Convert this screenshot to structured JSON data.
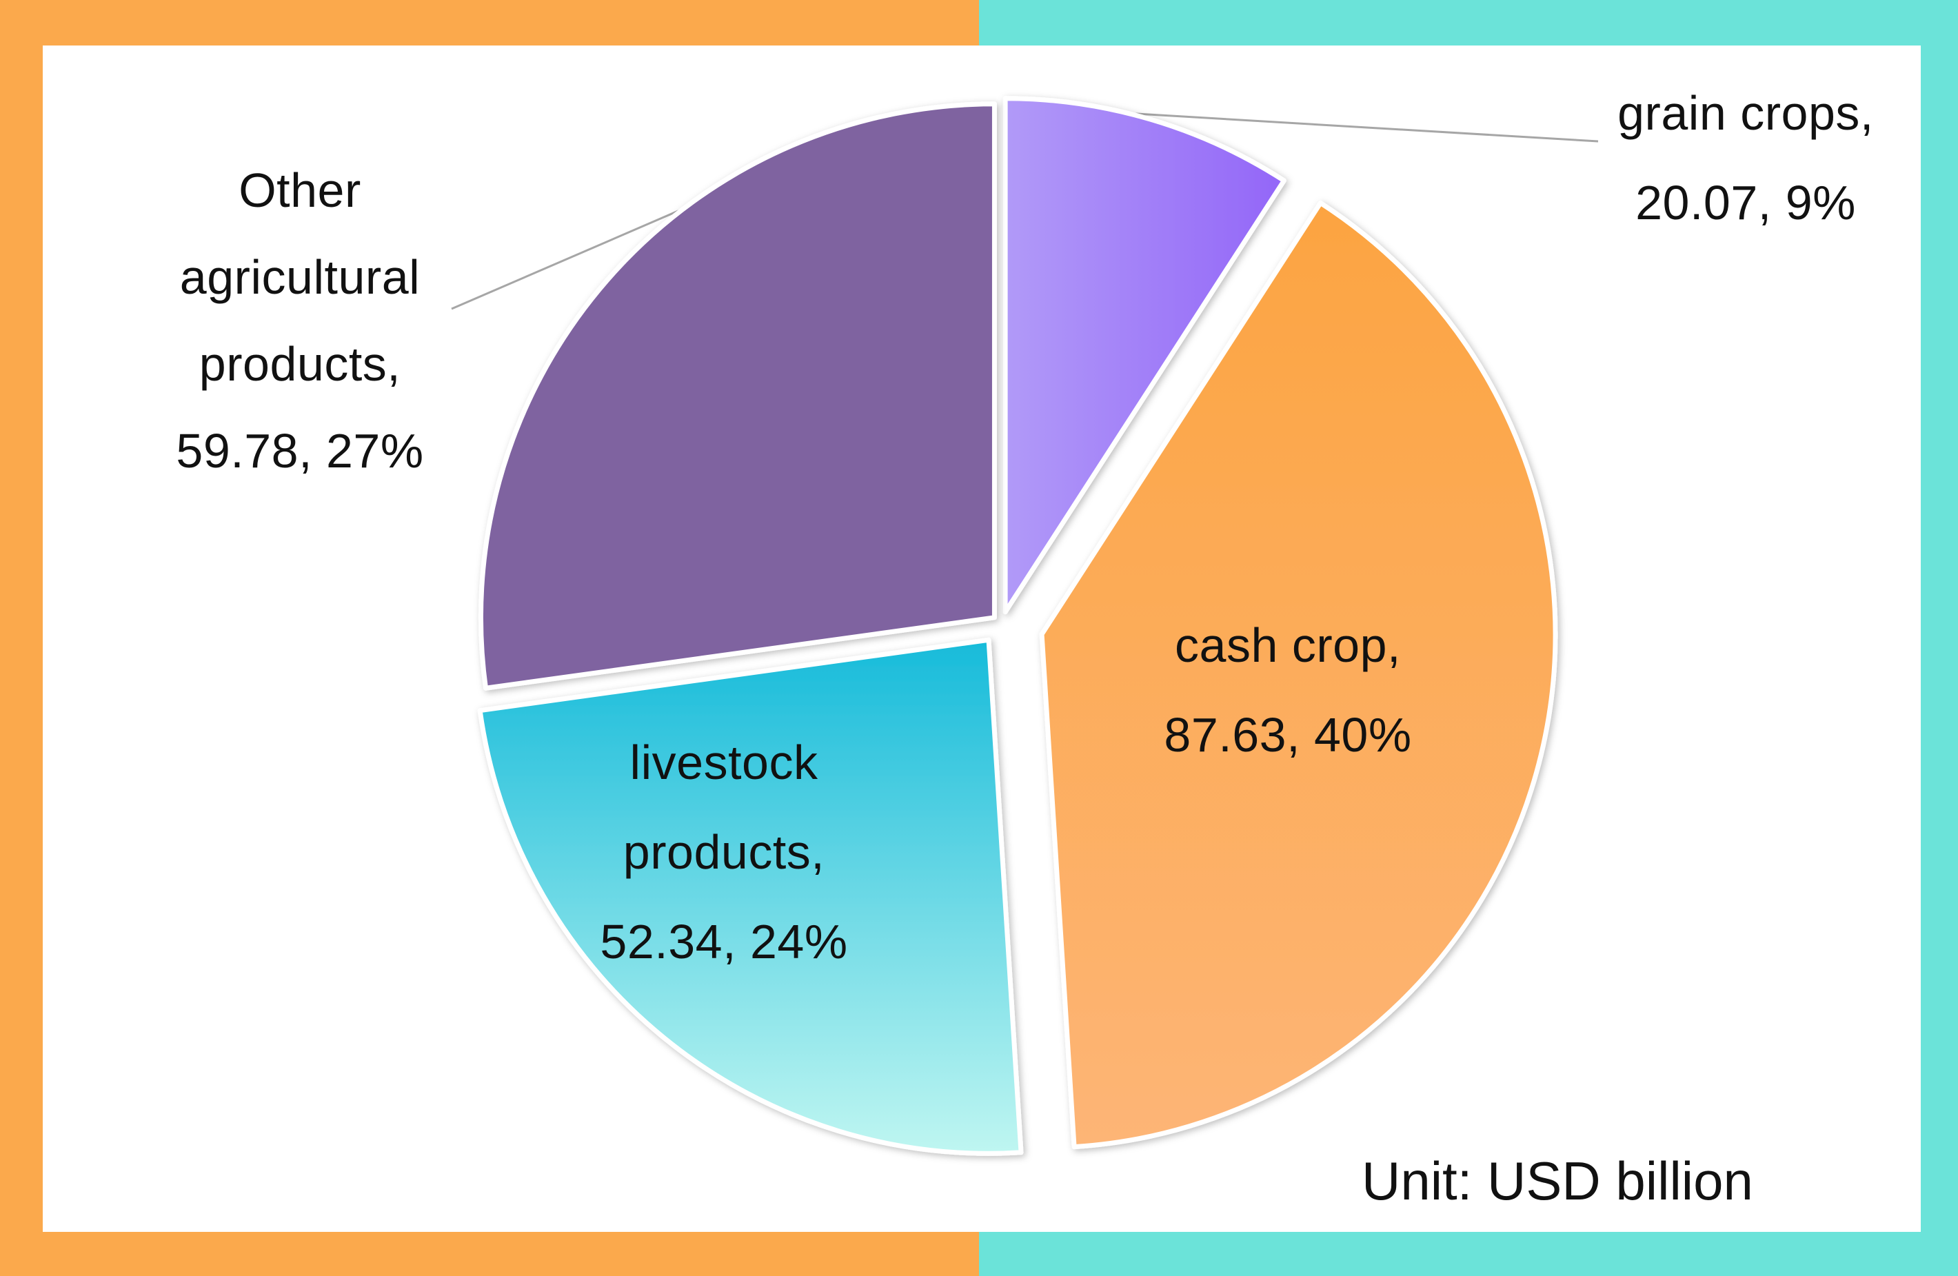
{
  "chart_data": {
    "type": "pie",
    "unit_label": "Unit: USD billion",
    "slices": [
      {
        "name": "grain crops",
        "value": 20.07,
        "percent": "9%",
        "label_lines": [
          "grain crops,",
          "20.07, 9%"
        ],
        "color": "#9B72F8",
        "color_light": "#B19AF8"
      },
      {
        "name": "cash crop",
        "value": 87.63,
        "percent": "40%",
        "label_lines": [
          "cash crop,",
          "87.63, 40%"
        ],
        "color": "#FCA94B",
        "color_light": "#FDB272"
      },
      {
        "name": "livestock products",
        "value": 52.34,
        "percent": "24%",
        "label_lines": [
          "livestock",
          "products,",
          "52.34, 24%"
        ],
        "color": "#1DBCDB",
        "color_light": "#BDF5F0"
      },
      {
        "name": "Other agricultural products",
        "value": 59.78,
        "percent": "27%",
        "label_lines": [
          "Other",
          "agricultural",
          "products,",
          "59.78, 27%"
        ],
        "color": "#7F64A0",
        "color_light": "#7F64A0"
      }
    ],
    "frame_colors": {
      "left": "#FBA94C",
      "right": "#6BE3D9"
    }
  }
}
